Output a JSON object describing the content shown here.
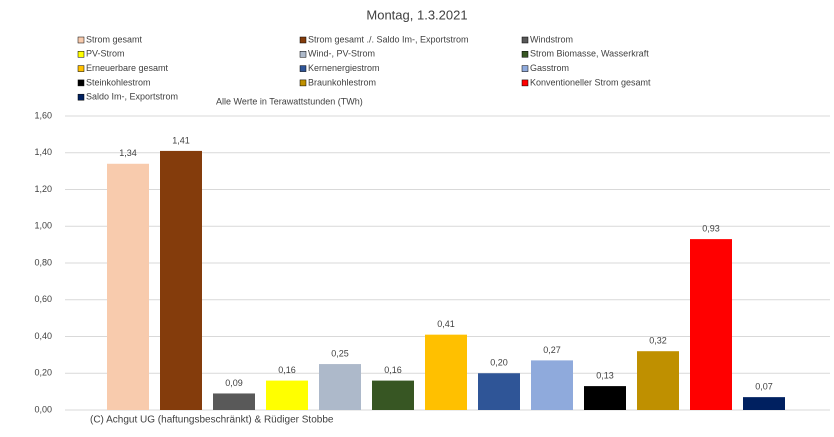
{
  "chart_data": {
    "type": "bar",
    "title": "Montag, 1.3.2021",
    "subtitle": "Alle Werte in Terawattstunden (TWh)",
    "footnote": "(C) Achgut UG (haftungsbeschränkt) & Rüdiger Stobbe",
    "categories": [
      null
    ],
    "series": [
      {
        "name": "Strom gesamt",
        "color": "#f8cbad",
        "values": [
          1.34
        ],
        "value_labels": [
          "1,34"
        ]
      },
      {
        "name": "Strom gesamt ./. Saldo Im-, Exportstrom",
        "color": "#843c0c",
        "values": [
          1.41
        ],
        "value_labels": [
          "1,41"
        ]
      },
      {
        "name": "Windstrom",
        "color": "#595959",
        "values": [
          0.09
        ],
        "value_labels": [
          "0,09"
        ]
      },
      {
        "name": "PV-Strom",
        "color": "#ffff00",
        "values": [
          0.16
        ],
        "value_labels": [
          "0,16"
        ]
      },
      {
        "name": "Wind-, PV-Strom",
        "color": "#adb9ca",
        "values": [
          0.25
        ],
        "value_labels": [
          "0,25"
        ]
      },
      {
        "name": "Strom Biomasse, Wasserkraft",
        "color": "#375623",
        "values": [
          0.16
        ],
        "value_labels": [
          "0,16"
        ]
      },
      {
        "name": "Erneuerbare gesamt",
        "color": "#ffc000",
        "values": [
          0.41
        ],
        "value_labels": [
          "0,41"
        ]
      },
      {
        "name": "Kernenergiestrom",
        "color": "#2f5597",
        "values": [
          0.2
        ],
        "value_labels": [
          "0,20"
        ]
      },
      {
        "name": "Gasstrom",
        "color": "#8faadc",
        "values": [
          0.27
        ],
        "value_labels": [
          "0,27"
        ]
      },
      {
        "name": "Steinkohlestrom",
        "color": "#000000",
        "values": [
          0.13
        ],
        "value_labels": [
          "0,13"
        ]
      },
      {
        "name": "Braunkohlestrom",
        "color": "#bf9000",
        "values": [
          0.32
        ],
        "value_labels": [
          "0,32"
        ]
      },
      {
        "name": "Konventioneller Strom gesamt",
        "color": "#ff0000",
        "values": [
          0.93
        ],
        "value_labels": [
          "0,93"
        ]
      },
      {
        "name": "Saldo Im-, Exportstrom",
        "color": "#002060",
        "values": [
          0.07
        ],
        "value_labels": [
          "0,07"
        ]
      }
    ],
    "ylim": [
      0,
      1.6
    ],
    "yticks": [
      {
        "value": 0,
        "label": "0,00"
      },
      {
        "value": 0.2,
        "label": "0,20"
      },
      {
        "value": 0.4,
        "label": "0,40"
      },
      {
        "value": 0.6,
        "label": "0,60"
      },
      {
        "value": 0.8,
        "label": "0,80"
      },
      {
        "value": 1.0,
        "label": "1,00"
      },
      {
        "value": 1.2,
        "label": "1,20"
      },
      {
        "value": 1.4,
        "label": "1,40"
      },
      {
        "value": 1.6,
        "label": "1,60"
      }
    ],
    "grid": true
  }
}
